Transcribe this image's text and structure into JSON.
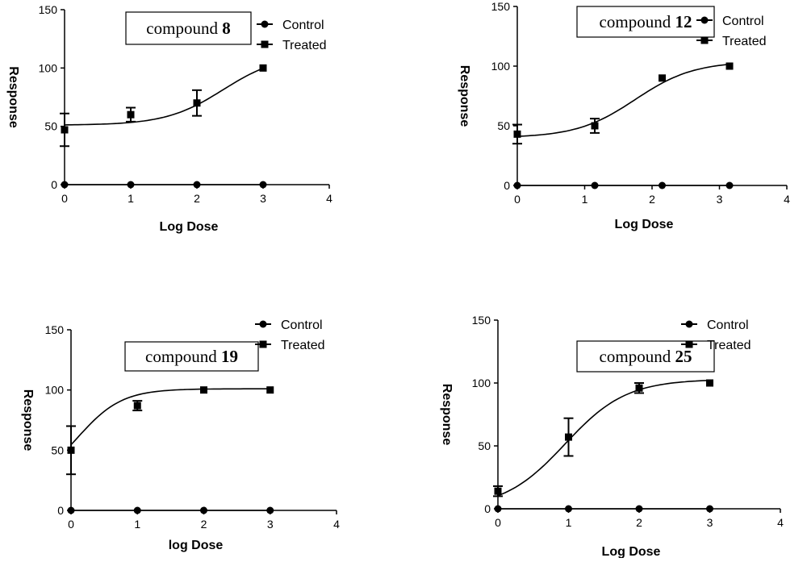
{
  "chart_data": [
    {
      "type": "line",
      "title": "compound 8",
      "title_prefix": "compound",
      "title_number": "8",
      "xlabel": "Log Dose",
      "ylabel": "Response",
      "xlim": [
        0,
        4
      ],
      "ylim": [
        0,
        150
      ],
      "x_ticks": [
        "0",
        "1",
        "2",
        "3",
        "4"
      ],
      "y_ticks": [
        "0",
        "50",
        "100",
        "150"
      ],
      "grid": false,
      "legend": "top-right",
      "series": [
        {
          "name": "Control",
          "marker": "circle",
          "points": [
            {
              "x": 0,
              "y": 0
            },
            {
              "x": 1,
              "y": 0
            },
            {
              "x": 2,
              "y": 0
            },
            {
              "x": 3,
              "y": 0
            }
          ]
        },
        {
          "name": "Treated",
          "marker": "square",
          "points": [
            {
              "x": 0,
              "y": 47,
              "err": 14
            },
            {
              "x": 1,
              "y": 60,
              "err": 6
            },
            {
              "x": 2,
              "y": 70,
              "err": 11
            },
            {
              "x": 3,
              "y": 100,
              "err": 0
            }
          ],
          "fit": {
            "bottom": 51,
            "top": 112,
            "logec50": 2.4,
            "hill": 1.0,
            "xmin": 0,
            "xmax": 3
          }
        }
      ]
    },
    {
      "type": "line",
      "title": "compound 12",
      "title_prefix": "compound",
      "title_number": "12",
      "xlabel": "Log Dose",
      "ylabel": "Response",
      "xlim": [
        0,
        4
      ],
      "ylim": [
        0,
        150
      ],
      "x_ticks": [
        "0",
        "1",
        "2",
        "3",
        "4"
      ],
      "y_ticks": [
        "0",
        "50",
        "100",
        "150"
      ],
      "grid": false,
      "legend": "top-right",
      "series": [
        {
          "name": "Control",
          "marker": "circle",
          "points": [
            {
              "x": 0,
              "y": 0
            },
            {
              "x": 1.15,
              "y": 0
            },
            {
              "x": 2.15,
              "y": 0
            },
            {
              "x": 3.15,
              "y": 0
            }
          ]
        },
        {
          "name": "Treated",
          "marker": "square",
          "points": [
            {
              "x": 0,
              "y": 43,
              "err": 8
            },
            {
              "x": 1.15,
              "y": 50,
              "err": 6
            },
            {
              "x": 2.15,
              "y": 90,
              "err": 0
            },
            {
              "x": 3.15,
              "y": 100,
              "err": 0
            }
          ],
          "fit": {
            "bottom": 40,
            "top": 104,
            "logec50": 1.75,
            "hill": 1.0,
            "xmin": 0,
            "xmax": 3.15
          }
        }
      ]
    },
    {
      "type": "line",
      "title": "compound 19",
      "title_prefix": "compound",
      "title_number": "19",
      "xlabel": "log Dose",
      "ylabel": "Response",
      "xlim": [
        0,
        4
      ],
      "ylim": [
        0,
        150
      ],
      "x_ticks": [
        "0",
        "1",
        "2",
        "3",
        "4"
      ],
      "y_ticks": [
        "0",
        "50",
        "100",
        "150"
      ],
      "grid": false,
      "legend": "top-right",
      "series": [
        {
          "name": "Control",
          "marker": "circle",
          "points": [
            {
              "x": 0,
              "y": 0
            },
            {
              "x": 1,
              "y": 0
            },
            {
              "x": 2,
              "y": 0
            },
            {
              "x": 3,
              "y": 0
            }
          ]
        },
        {
          "name": "Treated",
          "marker": "square",
          "points": [
            {
              "x": 0,
              "y": 50,
              "err": 20
            },
            {
              "x": 1,
              "y": 87,
              "err": 4
            },
            {
              "x": 2,
              "y": 100,
              "err": 0
            },
            {
              "x": 3,
              "y": 100,
              "err": 0
            }
          ],
          "fit": {
            "bottom": 20,
            "top": 101,
            "logec50": 0.1,
            "hill": 1.3,
            "xmin": 0,
            "xmax": 3
          }
        }
      ]
    },
    {
      "type": "line",
      "title": "compound 25",
      "title_prefix": "compound",
      "title_number": "25",
      "xlabel": "Log Dose",
      "ylabel": "Response",
      "xlim": [
        0,
        4
      ],
      "ylim": [
        0,
        150
      ],
      "x_ticks": [
        "0",
        "1",
        "2",
        "3",
        "4"
      ],
      "y_ticks": [
        "0",
        "50",
        "100",
        "150"
      ],
      "grid": false,
      "legend": "top-right",
      "series": [
        {
          "name": "Control",
          "marker": "circle",
          "points": [
            {
              "x": 0,
              "y": 0
            },
            {
              "x": 1,
              "y": 0
            },
            {
              "x": 2,
              "y": 0
            },
            {
              "x": 3,
              "y": 0
            }
          ]
        },
        {
          "name": "Treated",
          "marker": "square",
          "points": [
            {
              "x": 0,
              "y": 14,
              "err": 4
            },
            {
              "x": 1,
              "y": 57,
              "err": 15
            },
            {
              "x": 2,
              "y": 96,
              "err": 4
            },
            {
              "x": 3,
              "y": 100,
              "err": 0
            }
          ],
          "fit": {
            "bottom": 0,
            "top": 103,
            "logec50": 0.95,
            "hill": 1.0,
            "xmin": 0,
            "xmax": 3
          }
        }
      ]
    }
  ]
}
